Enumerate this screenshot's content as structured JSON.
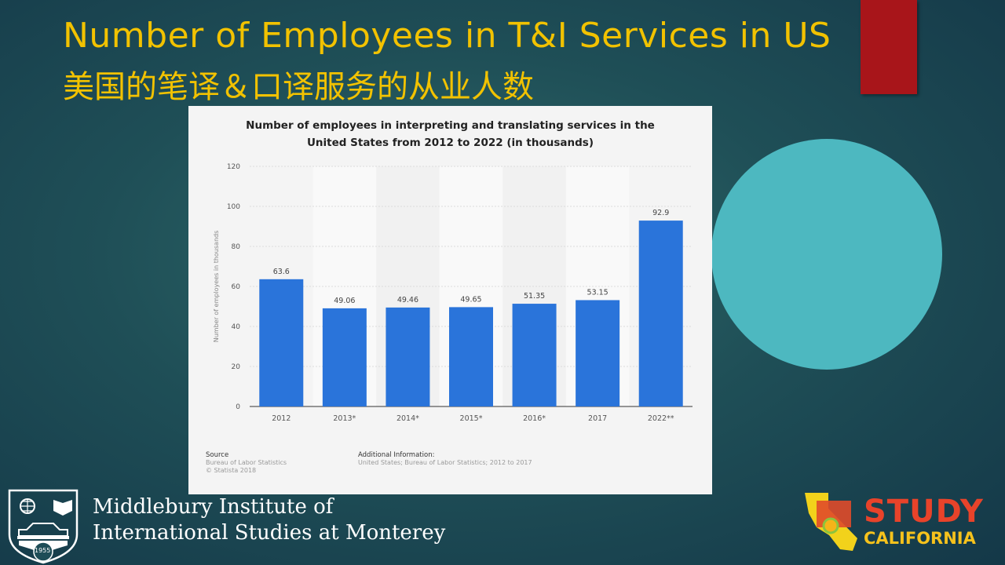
{
  "slide": {
    "title_en": "Number of Employees in T&I Services in US",
    "title_zh": "美国的笔译＆口译服务的从业人数"
  },
  "chart_data": {
    "type": "bar",
    "title_line1": "Number of employees in interpreting and translating services in the",
    "title_line2": "United States from 2012 to 2022 (in thousands)",
    "categories": [
      "2012",
      "2013*",
      "2014*",
      "2015*",
      "2016*",
      "2017",
      "2022**"
    ],
    "values": [
      63.6,
      49.06,
      49.46,
      49.65,
      51.35,
      53.15,
      92.9
    ],
    "value_labels": [
      "63.6",
      "49.06",
      "49.46",
      "49.65",
      "51.35",
      "53.15",
      "92.9"
    ],
    "ylabel": "Number of employees in thousands",
    "ylim": [
      0,
      120
    ],
    "yticks": [
      0,
      20,
      40,
      60,
      80,
      100,
      120
    ],
    "grid": true,
    "bar_color": "#2a74da"
  },
  "footer": {
    "source_label": "Source",
    "source_1": "Bureau of Labor Statistics",
    "source_2": "© Statista 2018",
    "info_label": "Additional Information:",
    "info_text": "United States; Bureau of Labor Statistics; 2012 to 2017"
  },
  "logos": {
    "middlebury_line1": "Middlebury Institute of",
    "middlebury_line2": "International Studies at Monterey",
    "year": "1955",
    "study_1": "STUDY",
    "study_2": "CALIFORNIA"
  }
}
